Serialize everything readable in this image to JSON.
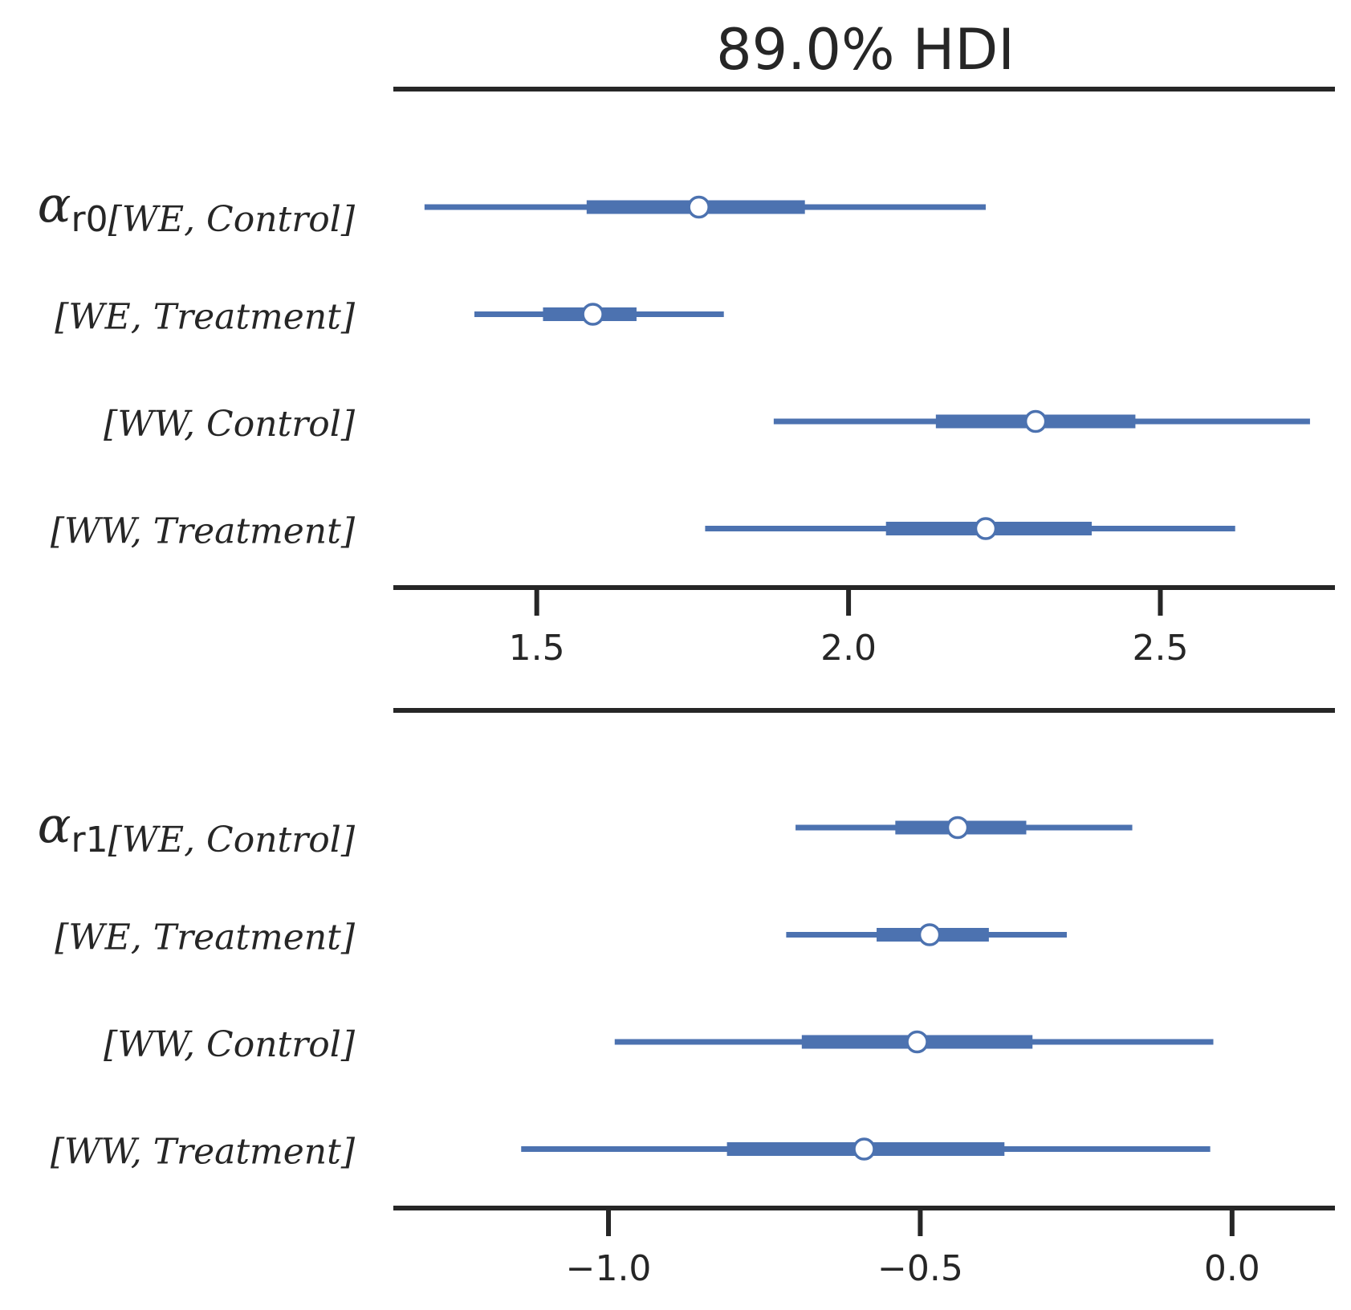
{
  "chart_data": {
    "type": "forest",
    "title": "89.0% HDI",
    "colors": {
      "series": "#4c72b0",
      "axis": "#262626",
      "point_fill": "#ffffff"
    },
    "panels": [
      {
        "variable": "α",
        "subscript_prefix": "r0",
        "xticks": [
          1.5,
          2.0,
          2.5
        ],
        "xtick_labels": [
          "1.5",
          "2.0",
          "2.5"
        ],
        "xlim": [
          1.27,
          2.78
        ],
        "rows": [
          {
            "label": "[WE, Control]",
            "hdi_low": 1.32,
            "hdi_high": 2.22,
            "iqr_low": 1.58,
            "iqr_high": 1.93,
            "point": 1.76
          },
          {
            "label": "[WE, Treatment]",
            "hdi_low": 1.4,
            "hdi_high": 1.8,
            "iqr_low": 1.51,
            "iqr_high": 1.66,
            "point": 1.59
          },
          {
            "label": "[WW, Control]",
            "hdi_low": 1.88,
            "hdi_high": 2.74,
            "iqr_low": 2.14,
            "iqr_high": 2.46,
            "point": 2.3
          },
          {
            "label": "[WW, Treatment]",
            "hdi_low": 1.77,
            "hdi_high": 2.62,
            "iqr_low": 2.06,
            "iqr_high": 2.39,
            "point": 2.22
          }
        ]
      },
      {
        "variable": "α",
        "subscript_prefix": "r1",
        "xticks": [
          -1.0,
          -0.5,
          0.0
        ],
        "xtick_labels": [
          "−1.0",
          "−0.5",
          "0.0"
        ],
        "xlim": [
          -1.345,
          0.165
        ],
        "rows": [
          {
            "label": "[WE, Control]",
            "hdi_low": -0.7,
            "hdi_high": -0.16,
            "iqr_low": -0.54,
            "iqr_high": -0.33,
            "point": -0.44
          },
          {
            "label": "[WE, Treatment]",
            "hdi_low": -0.715,
            "hdi_high": -0.265,
            "iqr_low": -0.57,
            "iqr_high": -0.39,
            "point": -0.485
          },
          {
            "label": "[WW, Control]",
            "hdi_low": -0.99,
            "hdi_high": -0.03,
            "iqr_low": -0.69,
            "iqr_high": -0.32,
            "point": -0.505
          },
          {
            "label": "[WW, Treatment]",
            "hdi_low": -1.14,
            "hdi_high": -0.035,
            "iqr_low": -0.81,
            "iqr_high": -0.365,
            "point": -0.59
          }
        ]
      }
    ]
  }
}
